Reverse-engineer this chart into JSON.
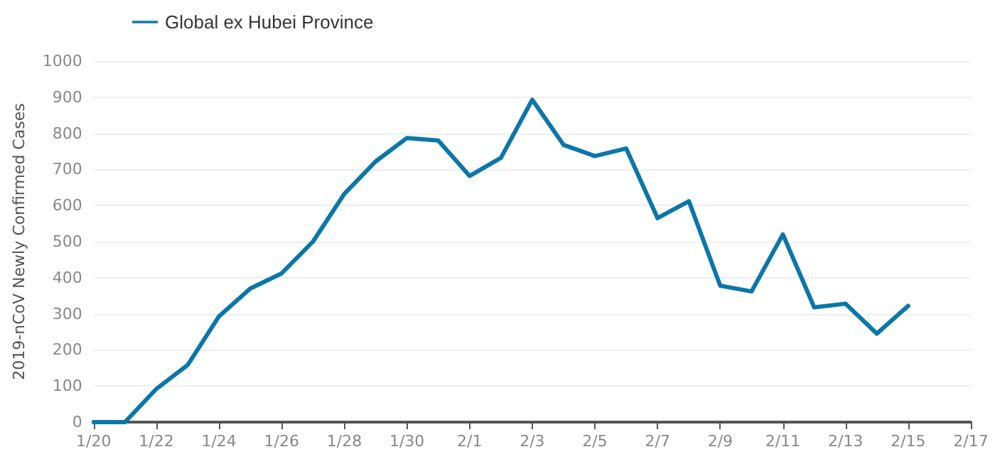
{
  "chart_data": {
    "type": "line",
    "ylabel": "2019-nCoV Newly Confirmed Cases",
    "x": [
      "--01-20",
      "--01-21",
      "--01-22",
      "--01-23",
      "--01-24",
      "--01-25",
      "--01-26",
      "--01-27",
      "--01-28",
      "--01-29",
      "--01-30",
      "--01-31",
      "--02-01",
      "--02-02",
      "--02-03",
      "--02-04",
      "--02-05",
      "--02-06",
      "--02-07",
      "--02-08",
      "--02-09",
      "--02-10",
      "--02-11",
      "--02-12",
      "--02-13",
      "--02-14",
      "--02-15"
    ],
    "series": [
      {
        "name": "Global ex Hubei Province",
        "color": "#0b77a8",
        "values": [
          0,
          0,
          92,
          158,
          293,
          370,
          412,
          500,
          632,
          722,
          787,
          780,
          682,
          732,
          893,
          768,
          737,
          758,
          565,
          612,
          378,
          362,
          520,
          318,
          328,
          245,
          322
        ]
      }
    ],
    "xlim": [
      "--01-20",
      "--02-17"
    ],
    "xticks": [
      {
        "value": "--01-20",
        "label": "1/20"
      },
      {
        "value": "--01-22",
        "label": "1/22"
      },
      {
        "value": "--01-24",
        "label": "1/24"
      },
      {
        "value": "--01-26",
        "label": "1/26"
      },
      {
        "value": "--01-28",
        "label": "1/28"
      },
      {
        "value": "--01-30",
        "label": "1/30"
      },
      {
        "value": "--02-01",
        "label": "2/1"
      },
      {
        "value": "--02-03",
        "label": "2/3"
      },
      {
        "value": "--02-05",
        "label": "2/5"
      },
      {
        "value": "--02-07",
        "label": "2/7"
      },
      {
        "value": "--02-09",
        "label": "2/9"
      },
      {
        "value": "--02-11",
        "label": "2/11"
      },
      {
        "value": "--02-13",
        "label": "2/13"
      },
      {
        "value": "--02-15",
        "label": "2/15"
      },
      {
        "value": "--02-17",
        "label": "2/17"
      }
    ],
    "ylim": [
      0,
      1000
    ],
    "yticks": [
      0,
      100,
      200,
      300,
      400,
      500,
      600,
      700,
      800,
      900,
      1000
    ],
    "grid": "y",
    "legend": "top left",
    "marker": "none",
    "line_style": "solid"
  }
}
